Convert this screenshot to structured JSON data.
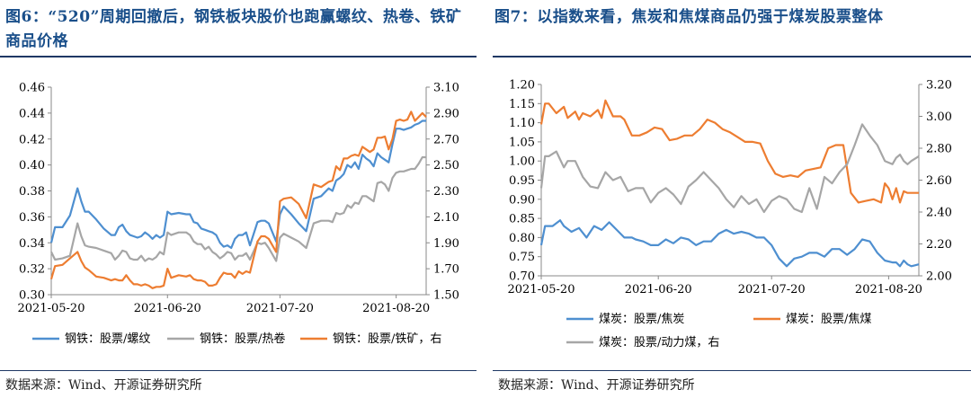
{
  "figures": [
    {
      "title": "图6：“520”周期回撤后，钢铁板块股价也跑赢螺纹、热卷、铁矿商品价格",
      "source": "数据来源：Wind、开源证券研究所"
    },
    {
      "title": "图7：以指数来看，焦炭和焦煤商品仍强于煤炭股票整体",
      "source": "数据来源：Wind、开源证券研究所"
    }
  ],
  "chart_data": [
    {
      "type": "line",
      "left_axis": {
        "ylim": [
          0.3,
          0.46
        ],
        "ticks": [
          "0.30",
          "0.32",
          "0.34",
          "0.36",
          "0.38",
          "0.40",
          "0.42",
          "0.44",
          "0.46"
        ]
      },
      "right_axis": {
        "ylim": [
          1.5,
          3.1
        ],
        "ticks": [
          "1.50",
          "1.70",
          "1.90",
          "2.10",
          "2.30",
          "2.50",
          "2.70",
          "2.90",
          "3.10"
        ]
      },
      "x_range": [
        0,
        100
      ],
      "x_ticks": [
        {
          "label": "2021-05-20",
          "pos": 0
        },
        {
          "label": "2021-06-20",
          "pos": 31
        },
        {
          "label": "2021-07-20",
          "pos": 61
        },
        {
          "label": "2021-08-20",
          "pos": 92
        }
      ],
      "grid": false,
      "legend_position": "bottom",
      "series": [
        {
          "name": "钢铁：股票/螺纹",
          "axis": "left",
          "color": "#4e8fd0",
          "x": [
            0,
            1,
            3,
            5,
            7,
            8,
            9,
            10,
            12,
            14,
            16,
            17,
            18,
            19,
            20,
            21,
            22,
            23,
            24,
            25,
            26,
            27,
            28,
            29,
            30,
            31,
            32,
            34,
            36,
            37,
            38,
            39,
            40,
            41,
            42,
            43,
            44,
            45,
            46,
            47,
            48,
            49,
            50,
            51,
            52,
            53,
            55,
            56,
            57,
            58,
            60,
            61,
            62,
            64,
            66,
            68,
            70,
            72,
            74,
            75,
            76,
            77,
            78,
            79,
            80,
            81,
            82,
            83,
            84,
            85,
            86,
            87,
            88,
            89,
            90,
            91,
            92,
            93,
            94,
            95,
            96,
            97,
            98,
            99,
            100
          ],
          "y": [
            0.34,
            0.352,
            0.352,
            0.361,
            0.382,
            0.372,
            0.364,
            0.364,
            0.358,
            0.351,
            0.346,
            0.346,
            0.352,
            0.354,
            0.349,
            0.346,
            0.345,
            0.344,
            0.345,
            0.348,
            0.346,
            0.343,
            0.346,
            0.344,
            0.346,
            0.364,
            0.362,
            0.363,
            0.362,
            0.362,
            0.356,
            0.355,
            0.351,
            0.35,
            0.349,
            0.348,
            0.346,
            0.34,
            0.337,
            0.338,
            0.336,
            0.343,
            0.346,
            0.346,
            0.348,
            0.338,
            0.356,
            0.357,
            0.357,
            0.355,
            0.341,
            0.362,
            0.368,
            0.362,
            0.355,
            0.349,
            0.374,
            0.376,
            0.382,
            0.38,
            0.388,
            0.39,
            0.393,
            0.4,
            0.398,
            0.402,
            0.397,
            0.408,
            0.405,
            0.403,
            0.399,
            0.409,
            0.406,
            0.404,
            0.402,
            0.416,
            0.428,
            0.428,
            0.427,
            0.428,
            0.429,
            0.431,
            0.432,
            0.434,
            0.434
          ]
        },
        {
          "name": "钢铁：股票/热卷",
          "axis": "left",
          "color": "#a6a6a6",
          "x": [
            0,
            1,
            3,
            5,
            7,
            8,
            9,
            10,
            12,
            14,
            16,
            17,
            18,
            19,
            20,
            21,
            22,
            23,
            24,
            25,
            26,
            27,
            28,
            29,
            30,
            31,
            32,
            34,
            36,
            37,
            38,
            39,
            40,
            41,
            42,
            43,
            44,
            45,
            46,
            47,
            48,
            49,
            50,
            51,
            52,
            53,
            55,
            56,
            57,
            58,
            60,
            61,
            62,
            64,
            66,
            68,
            70,
            72,
            74,
            75,
            76,
            77,
            78,
            79,
            80,
            81,
            82,
            83,
            84,
            85,
            86,
            87,
            88,
            89,
            90,
            91,
            92,
            93,
            94,
            95,
            96,
            97,
            98,
            99,
            100
          ],
          "y": [
            0.333,
            0.327,
            0.328,
            0.33,
            0.355,
            0.345,
            0.338,
            0.337,
            0.336,
            0.334,
            0.332,
            0.327,
            0.33,
            0.334,
            0.333,
            0.328,
            0.327,
            0.327,
            0.33,
            0.326,
            0.328,
            0.327,
            0.329,
            0.333,
            0.331,
            0.348,
            0.346,
            0.348,
            0.348,
            0.346,
            0.341,
            0.339,
            0.339,
            0.335,
            0.337,
            0.333,
            0.331,
            0.328,
            0.33,
            0.333,
            0.332,
            0.327,
            0.33,
            0.33,
            0.332,
            0.327,
            0.34,
            0.339,
            0.34,
            0.336,
            0.326,
            0.344,
            0.347,
            0.344,
            0.341,
            0.336,
            0.355,
            0.357,
            0.357,
            0.356,
            0.363,
            0.362,
            0.363,
            0.369,
            0.367,
            0.371,
            0.37,
            0.376,
            0.376,
            0.374,
            0.372,
            0.386,
            0.387,
            0.385,
            0.38,
            0.39,
            0.394,
            0.395,
            0.395,
            0.396,
            0.397,
            0.397,
            0.401,
            0.406,
            0.406
          ]
        },
        {
          "name": "钢铁：股票/铁矿，右",
          "axis": "right",
          "color": "#ed7d31",
          "x": [
            0,
            1,
            3,
            5,
            7,
            8,
            9,
            10,
            12,
            14,
            16,
            17,
            18,
            19,
            20,
            21,
            22,
            23,
            24,
            25,
            26,
            27,
            28,
            29,
            30,
            31,
            32,
            34,
            36,
            37,
            38,
            39,
            40,
            41,
            42,
            43,
            44,
            45,
            46,
            47,
            48,
            49,
            50,
            51,
            52,
            53,
            55,
            56,
            57,
            58,
            60,
            61,
            62,
            64,
            66,
            68,
            70,
            72,
            74,
            75,
            76,
            77,
            78,
            79,
            80,
            81,
            82,
            83,
            84,
            85,
            86,
            87,
            88,
            89,
            90,
            91,
            92,
            93,
            94,
            95,
            96,
            97,
            98,
            99,
            100
          ],
          "y": [
            1.62,
            1.72,
            1.73,
            1.78,
            1.83,
            1.76,
            1.71,
            1.69,
            1.64,
            1.63,
            1.61,
            1.62,
            1.61,
            1.61,
            1.65,
            1.61,
            1.58,
            1.58,
            1.57,
            1.58,
            1.57,
            1.55,
            1.56,
            1.56,
            1.57,
            1.7,
            1.63,
            1.65,
            1.64,
            1.65,
            1.62,
            1.61,
            1.61,
            1.6,
            1.57,
            1.57,
            1.58,
            1.63,
            1.67,
            1.66,
            1.66,
            1.63,
            1.68,
            1.66,
            1.68,
            1.67,
            1.91,
            1.95,
            1.95,
            1.93,
            1.83,
            2.22,
            2.24,
            2.25,
            2.2,
            2.09,
            2.35,
            2.33,
            2.37,
            2.38,
            2.49,
            2.46,
            2.55,
            2.55,
            2.57,
            2.58,
            2.57,
            2.64,
            2.62,
            2.6,
            2.62,
            2.71,
            2.71,
            2.72,
            2.62,
            2.7,
            2.84,
            2.85,
            2.84,
            2.85,
            2.91,
            2.84,
            2.87,
            2.9,
            2.87
          ]
        }
      ]
    },
    {
      "type": "line",
      "left_axis": {
        "ylim": [
          0.7,
          1.2
        ],
        "ticks": [
          "0.70",
          "0.75",
          "0.80",
          "0.85",
          "0.90",
          "0.95",
          "1.00",
          "1.05",
          "1.10",
          "1.15",
          "1.20"
        ]
      },
      "right_axis": {
        "ylim": [
          2.0,
          3.2
        ],
        "ticks": [
          "2.00",
          "2.20",
          "2.40",
          "2.60",
          "2.80",
          "3.00",
          "3.20"
        ]
      },
      "x_range": [
        0,
        100
      ],
      "x_ticks": [
        {
          "label": "2021-05-20",
          "pos": 0
        },
        {
          "label": "2021-06-20",
          "pos": 31
        },
        {
          "label": "2021-07-20",
          "pos": 61
        },
        {
          "label": "2021-08-20",
          "pos": 92
        }
      ],
      "grid": false,
      "legend_position": "bottom",
      "series": [
        {
          "name": "煤炭：股票/焦炭",
          "axis": "left",
          "color": "#4e8fd0",
          "x": [
            0,
            1,
            3,
            5,
            6,
            8,
            10,
            12,
            14,
            16,
            18,
            20,
            22,
            24,
            25,
            27,
            29,
            31,
            33,
            35,
            37,
            39,
            41,
            43,
            45,
            47,
            49,
            51,
            53,
            55,
            57,
            59,
            61,
            63,
            65,
            67,
            69,
            71,
            73,
            75,
            77,
            79,
            81,
            83,
            85,
            87,
            89,
            91,
            93,
            94,
            95,
            96,
            97,
            98,
            100
          ],
          "y": [
            0.78,
            0.83,
            0.83,
            0.845,
            0.83,
            0.815,
            0.825,
            0.8,
            0.83,
            0.82,
            0.84,
            0.82,
            0.8,
            0.8,
            0.795,
            0.79,
            0.78,
            0.78,
            0.795,
            0.785,
            0.8,
            0.795,
            0.78,
            0.79,
            0.79,
            0.81,
            0.82,
            0.81,
            0.815,
            0.81,
            0.8,
            0.8,
            0.78,
            0.745,
            0.725,
            0.745,
            0.75,
            0.76,
            0.76,
            0.75,
            0.77,
            0.77,
            0.755,
            0.77,
            0.795,
            0.79,
            0.76,
            0.74,
            0.735,
            0.735,
            0.725,
            0.74,
            0.73,
            0.725,
            0.73
          ]
        },
        {
          "name": "煤炭：股票/焦煤",
          "axis": "right",
          "color": "#ed7d31",
          "x": [
            0,
            1,
            2,
            4,
            6,
            7,
            9,
            10,
            11,
            13,
            15,
            16,
            17,
            19,
            21,
            22,
            24,
            26,
            28,
            30,
            32,
            34,
            36,
            38,
            40,
            42,
            44,
            46,
            48,
            50,
            52,
            54,
            56,
            58,
            60,
            62,
            64,
            66,
            68,
            70,
            72,
            74,
            76,
            78,
            80,
            82,
            84,
            86,
            88,
            90,
            91,
            92,
            93,
            94,
            95,
            96,
            97,
            98,
            100
          ],
          "y": [
            2.95,
            3.08,
            3.08,
            3.02,
            3.06,
            2.99,
            3.03,
            2.98,
            3.02,
            3.0,
            3.04,
            2.99,
            3.1,
            3.0,
            3.0,
            2.98,
            2.88,
            2.88,
            2.9,
            2.93,
            2.92,
            2.85,
            2.86,
            2.88,
            2.88,
            2.92,
            2.98,
            2.96,
            2.92,
            2.9,
            2.87,
            2.84,
            2.84,
            2.83,
            2.72,
            2.64,
            2.62,
            2.63,
            2.62,
            2.66,
            2.67,
            2.68,
            2.8,
            2.82,
            2.82,
            2.52,
            2.46,
            2.47,
            2.48,
            2.46,
            2.58,
            2.55,
            2.48,
            2.55,
            2.46,
            2.53,
            2.52,
            2.52,
            2.52
          ]
        },
        {
          "name": "煤炭：股票/动力煤，右",
          "axis": "right",
          "color": "#a6a6a6",
          "x": [
            0,
            1,
            2,
            4,
            6,
            7,
            9,
            11,
            13,
            15,
            17,
            19,
            21,
            23,
            25,
            27,
            29,
            31,
            33,
            35,
            37,
            39,
            41,
            43,
            45,
            47,
            49,
            51,
            53,
            55,
            57,
            59,
            61,
            63,
            65,
            67,
            69,
            71,
            73,
            75,
            77,
            79,
            81,
            83,
            85,
            87,
            89,
            91,
            93,
            94,
            95,
            96,
            97,
            98,
            100
          ],
          "y": [
            2.55,
            2.75,
            2.75,
            2.78,
            2.68,
            2.72,
            2.72,
            2.62,
            2.56,
            2.55,
            2.65,
            2.6,
            2.62,
            2.53,
            2.55,
            2.55,
            2.46,
            2.52,
            2.55,
            2.51,
            2.45,
            2.56,
            2.6,
            2.65,
            2.6,
            2.55,
            2.48,
            2.43,
            2.5,
            2.45,
            2.48,
            2.4,
            2.47,
            2.5,
            2.48,
            2.42,
            2.4,
            2.55,
            2.42,
            2.62,
            2.58,
            2.65,
            2.7,
            2.82,
            2.95,
            2.88,
            2.82,
            2.72,
            2.7,
            2.74,
            2.76,
            2.72,
            2.7,
            2.72,
            2.75
          ]
        }
      ]
    }
  ]
}
